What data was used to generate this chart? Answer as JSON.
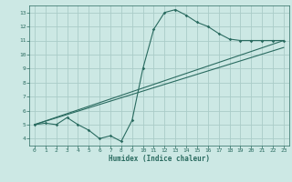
{
  "bg_color": "#cce8e4",
  "grid_color": "#aaccc8",
  "line_color": "#2a6b60",
  "xlabel": "Humidex (Indice chaleur)",
  "xlim": [
    -0.5,
    23.5
  ],
  "ylim": [
    3.5,
    13.5
  ],
  "yticks": [
    4,
    5,
    6,
    7,
    8,
    9,
    10,
    11,
    12,
    13
  ],
  "xticks": [
    0,
    1,
    2,
    3,
    4,
    5,
    6,
    7,
    8,
    9,
    10,
    11,
    12,
    13,
    14,
    15,
    16,
    17,
    18,
    19,
    20,
    21,
    22,
    23
  ],
  "main_line_x": [
    0,
    1,
    2,
    3,
    4,
    5,
    6,
    7,
    8,
    9,
    10,
    11,
    12,
    13,
    14,
    15,
    16,
    17,
    18,
    19,
    20,
    21,
    22,
    23
  ],
  "main_line_y": [
    5.0,
    5.1,
    5.0,
    5.5,
    5.0,
    4.6,
    4.0,
    4.2,
    3.8,
    5.3,
    9.0,
    11.8,
    13.0,
    13.2,
    12.8,
    12.3,
    12.0,
    11.5,
    11.1,
    11.0,
    11.0,
    11.0,
    11.0,
    11.0
  ],
  "line2_x": [
    0,
    23
  ],
  "line2_y": [
    5.0,
    11.0
  ],
  "line3_x": [
    0,
    23
  ],
  "line3_y": [
    5.0,
    10.5
  ]
}
